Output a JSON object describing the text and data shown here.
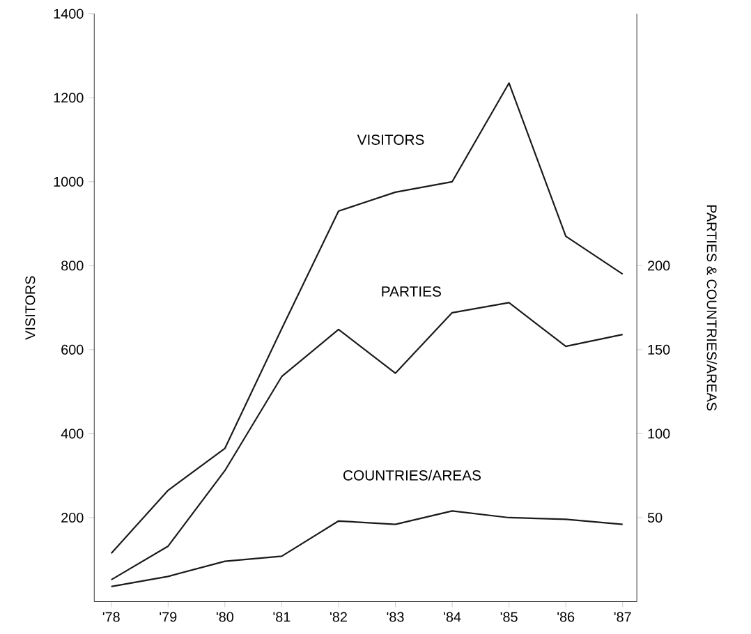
{
  "chart_data": {
    "type": "line",
    "ylabel": "VISITORS",
    "y2label": "PARTIES & COUNTRIES/AREAS",
    "categories": [
      "'78",
      "'79",
      "'80",
      "'81",
      "'82",
      "'83",
      "'84",
      "'85",
      "'86",
      "'87"
    ],
    "series": [
      {
        "name": "VISITORS",
        "color": "#1a1a1a",
        "values": [
          115,
          265,
          365,
          650,
          930,
          975,
          1000,
          1235,
          870,
          780
        ]
      },
      {
        "name": "PARTIES",
        "color": "#1a1a1a",
        "axis": "y2",
        "values": [
          13,
          33,
          78,
          134,
          162,
          136,
          172,
          178,
          152,
          159
        ]
      },
      {
        "name": "COUNTRIES/AREAS",
        "color": "#1a1a1a",
        "axis": "y2",
        "values": [
          9,
          15,
          24,
          27,
          48,
          46,
          54,
          50,
          49,
          46
        ]
      }
    ],
    "ylim": [
      0,
      1400
    ],
    "yticks": [
      200,
      400,
      600,
      800,
      1000,
      1200,
      1400
    ],
    "y2lim": [
      0,
      350
    ],
    "y2ticks": [
      50,
      100,
      150,
      200
    ],
    "grid": false,
    "marker": "none",
    "line_style": "solid"
  }
}
